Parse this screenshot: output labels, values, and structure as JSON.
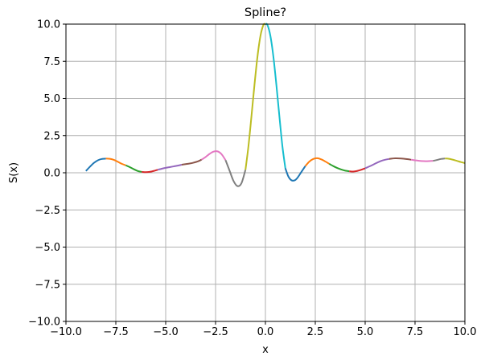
{
  "chart_data": {
    "type": "line",
    "title": "Spline?",
    "xlabel": "x",
    "ylabel": "S(x)",
    "xlim": [
      -10,
      10
    ],
    "ylim": [
      -10,
      10
    ],
    "grid": true,
    "x_ticks": [
      -10,
      -7.5,
      -5,
      -2.5,
      0,
      2.5,
      5,
      7.5,
      10
    ],
    "x_tick_labels": [
      "−10.0",
      "−7.5",
      "−5.0",
      "−2.5",
      "0.0",
      "2.5",
      "5.0",
      "7.5",
      "10.0"
    ],
    "y_ticks": [
      -10,
      -7.5,
      -5,
      -2.5,
      0,
      2.5,
      5,
      7.5,
      10
    ],
    "y_tick_labels": [
      "−10.0",
      "−7.5",
      "−5.0",
      "−2.5",
      "0.0",
      "2.5",
      "5.0",
      "7.5",
      "10.0"
    ],
    "segments": [
      {
        "color": "#1f77b4",
        "x": [
          -9.0,
          -8.8,
          -8.6,
          -8.4,
          -8.2,
          -8.0
        ],
        "y": [
          0.12,
          0.4,
          0.66,
          0.84,
          0.93,
          0.95
        ]
      },
      {
        "color": "#ff7f0e",
        "x": [
          -8.0,
          -7.8,
          -7.6,
          -7.4,
          -7.2,
          -7.0
        ],
        "y": [
          0.95,
          0.94,
          0.87,
          0.74,
          0.6,
          0.5
        ]
      },
      {
        "color": "#2ca02c",
        "x": [
          -7.0,
          -6.8,
          -6.6,
          -6.4,
          -6.2
        ],
        "y": [
          0.5,
          0.38,
          0.24,
          0.12,
          0.06
        ]
      },
      {
        "color": "#d62728",
        "x": [
          -6.2,
          -6.0,
          -5.8,
          -5.6,
          -5.4
        ],
        "y": [
          0.06,
          0.04,
          0.06,
          0.12,
          0.2
        ]
      },
      {
        "color": "#9467bd",
        "x": [
          -5.4,
          -5.2,
          -5.0,
          -4.8,
          -4.6,
          -4.4,
          -4.2
        ],
        "y": [
          0.2,
          0.27,
          0.33,
          0.38,
          0.43,
          0.48,
          0.54
        ]
      },
      {
        "color": "#8c564b",
        "x": [
          -4.2,
          -4.0,
          -3.8,
          -3.6,
          -3.4,
          -3.2
        ],
        "y": [
          0.54,
          0.58,
          0.62,
          0.68,
          0.76,
          0.88
        ]
      },
      {
        "color": "#e377c2",
        "x": [
          -3.2,
          -3.0,
          -2.8,
          -2.6,
          -2.4,
          -2.2,
          -2.0
        ],
        "y": [
          0.88,
          1.06,
          1.27,
          1.42,
          1.44,
          1.25,
          0.85
        ]
      },
      {
        "color": "#7f7f7f",
        "x": [
          -2.0,
          -1.8,
          -1.6,
          -1.4,
          -1.2,
          -1.0
        ],
        "y": [
          0.85,
          0.15,
          -0.55,
          -0.9,
          -0.7,
          0.2
        ]
      },
      {
        "color": "#bcbd22",
        "x": [
          -1.0,
          -0.85,
          -0.7,
          -0.55,
          -0.4,
          -0.25,
          -0.1,
          0.0
        ],
        "y": [
          0.2,
          1.8,
          3.8,
          5.9,
          7.8,
          9.2,
          9.95,
          10.0
        ]
      },
      {
        "color": "#17becf",
        "x": [
          0.0,
          0.1,
          0.25,
          0.4,
          0.55,
          0.7,
          0.85,
          1.0
        ],
        "y": [
          10.0,
          9.95,
          9.2,
          7.8,
          5.9,
          3.8,
          1.8,
          0.3
        ]
      },
      {
        "color": "#1f77b4",
        "x": [
          1.0,
          1.15,
          1.3,
          1.45,
          1.6,
          1.8,
          2.0
        ],
        "y": [
          0.3,
          -0.25,
          -0.5,
          -0.52,
          -0.35,
          0.05,
          0.45
        ]
      },
      {
        "color": "#ff7f0e",
        "x": [
          2.0,
          2.2,
          2.4,
          2.6,
          2.8,
          3.0,
          3.2
        ],
        "y": [
          0.45,
          0.75,
          0.93,
          0.98,
          0.9,
          0.76,
          0.6
        ]
      },
      {
        "color": "#2ca02c",
        "x": [
          3.2,
          3.4,
          3.6,
          3.8,
          4.0,
          4.2
        ],
        "y": [
          0.6,
          0.45,
          0.32,
          0.22,
          0.14,
          0.1
        ]
      },
      {
        "color": "#d62728",
        "x": [
          4.2,
          4.4,
          4.6,
          4.8,
          5.0
        ],
        "y": [
          0.1,
          0.08,
          0.12,
          0.2,
          0.3
        ]
      },
      {
        "color": "#9467bd",
        "x": [
          5.0,
          5.3,
          5.6,
          5.9,
          6.2
        ],
        "y": [
          0.3,
          0.48,
          0.68,
          0.84,
          0.93
        ]
      },
      {
        "color": "#8c564b",
        "x": [
          6.2,
          6.5,
          6.8,
          7.1,
          7.3
        ],
        "y": [
          0.93,
          0.97,
          0.96,
          0.92,
          0.88
        ]
      },
      {
        "color": "#e377c2",
        "x": [
          7.3,
          7.5,
          7.8,
          8.1,
          8.4
        ],
        "y": [
          0.88,
          0.84,
          0.79,
          0.78,
          0.8
        ]
      },
      {
        "color": "#7f7f7f",
        "x": [
          8.4,
          8.6,
          8.8,
          9.0
        ],
        "y": [
          0.8,
          0.86,
          0.93,
          0.96
        ]
      },
      {
        "color": "#bcbd22",
        "x": [
          9.0,
          9.2,
          9.4,
          9.6,
          9.8,
          10.0
        ],
        "y": [
          0.96,
          0.94,
          0.88,
          0.8,
          0.72,
          0.65
        ]
      }
    ]
  }
}
